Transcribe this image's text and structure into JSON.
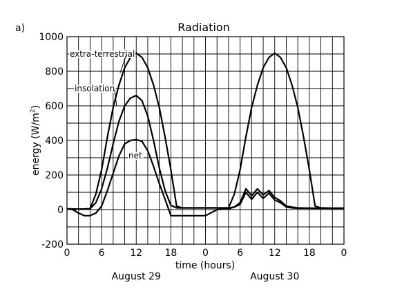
{
  "panel_label": "a)",
  "chart_data": {
    "type": "line",
    "title": "Radiation",
    "xlabel": "time (hours)",
    "ylabel": "energy (W/m²)",
    "ylabel_main": "energy (W/m",
    "ylabel_sup": "2",
    "ylabel_close": ")",
    "xlim": [
      0,
      48
    ],
    "ylim": [
      -200,
      1000
    ],
    "grid": true,
    "x_ticks": [
      0,
      6,
      12,
      18,
      24,
      30,
      36,
      42,
      48
    ],
    "x_tick_labels": [
      "0",
      "6",
      "12",
      "18",
      "0",
      "6",
      "12",
      "18",
      "0"
    ],
    "y_ticks": [
      -200,
      0,
      200,
      400,
      600,
      800,
      1000
    ],
    "y_tick_labels": [
      "-200",
      "0",
      "200",
      "400",
      "600",
      "800",
      "1000"
    ],
    "day_labels": [
      {
        "text": "August 29",
        "x": 12
      },
      {
        "text": "August 30",
        "x": 36
      }
    ],
    "series": [
      {
        "name": "extra-terrestrial",
        "x": [
          0,
          2,
          4,
          5,
          6,
          7,
          8,
          9,
          10,
          11,
          12,
          13,
          14,
          15,
          16,
          17,
          18,
          19,
          20,
          22,
          24,
          26,
          28,
          29,
          30,
          31,
          32,
          33,
          34,
          35,
          36,
          37,
          38,
          39,
          40,
          41,
          42,
          43,
          44,
          46,
          48
        ],
        "y": [
          5,
          3,
          5,
          90,
          230,
          420,
          590,
          720,
          820,
          880,
          905,
          880,
          820,
          720,
          590,
          420,
          230,
          20,
          10,
          10,
          10,
          10,
          10,
          90,
          230,
          420,
          590,
          720,
          820,
          880,
          905,
          880,
          820,
          720,
          590,
          420,
          230,
          20,
          10,
          8,
          8
        ]
      },
      {
        "name": "insolation",
        "x": [
          0,
          2,
          4,
          5,
          6,
          7,
          8,
          9,
          10,
          11,
          12,
          13,
          14,
          15,
          16,
          17,
          18,
          19,
          20,
          24,
          28,
          29,
          30,
          31,
          32,
          33,
          34,
          35,
          36,
          37,
          38,
          39,
          40,
          42,
          44,
          46,
          48
        ],
        "y": [
          5,
          3,
          5,
          40,
          120,
          240,
          380,
          510,
          600,
          645,
          660,
          630,
          540,
          400,
          240,
          110,
          25,
          10,
          10,
          10,
          10,
          15,
          40,
          120,
          80,
          120,
          85,
          110,
          70,
          50,
          20,
          15,
          10,
          8,
          8,
          8,
          8
        ]
      },
      {
        "name": "net",
        "x": [
          0,
          1,
          2,
          3,
          4,
          5,
          6,
          7,
          8,
          9,
          10,
          11,
          12,
          13,
          14,
          15,
          16,
          17,
          18,
          19,
          20,
          22,
          24,
          26,
          28,
          29,
          30,
          31,
          32,
          33,
          34,
          35,
          36,
          37,
          38,
          39,
          40,
          42,
          44,
          46,
          48
        ],
        "y": [
          5,
          0,
          -20,
          -35,
          -35,
          -20,
          20,
          110,
          210,
          310,
          380,
          400,
          405,
          395,
          340,
          250,
          150,
          60,
          -35,
          -35,
          -35,
          -35,
          -35,
          0,
          5,
          15,
          30,
          100,
          60,
          100,
          65,
          95,
          55,
          40,
          15,
          10,
          8,
          8,
          8,
          8,
          8
        ]
      }
    ],
    "annotations": [
      {
        "text": "extra-terrestrial",
        "target_series": "extra-terrestrial"
      },
      {
        "text": "insolation",
        "target_series": "insolation"
      },
      {
        "text": "net",
        "target_series": "net"
      }
    ]
  }
}
